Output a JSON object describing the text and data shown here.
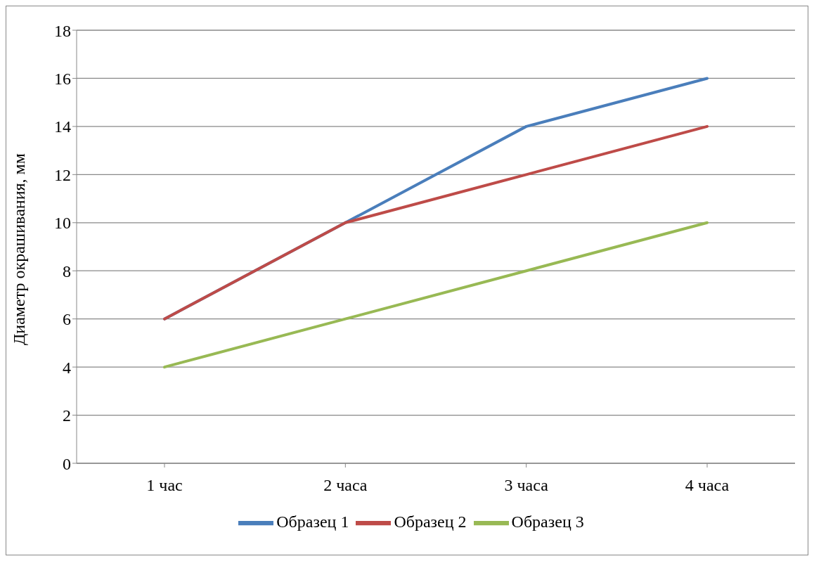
{
  "chart_data": {
    "type": "line",
    "ylabel": "Диаметр окрашивания, мм",
    "categories": [
      "1 час",
      "2 часа",
      "3 часа",
      "4 часа"
    ],
    "series": [
      {
        "name": "Образец 1",
        "color": "#4a7ebb",
        "values": [
          6,
          10,
          14,
          16
        ]
      },
      {
        "name": "Образец 2",
        "color": "#be4b48",
        "values": [
          6,
          10,
          12,
          14
        ]
      },
      {
        "name": "Образец 3",
        "color": "#98b954",
        "values": [
          4,
          6,
          8,
          10
        ]
      }
    ],
    "ylim": [
      0,
      18
    ],
    "yticks": [
      0,
      2,
      4,
      6,
      8,
      10,
      12,
      14,
      16,
      18
    ],
    "grid": "y",
    "legend": "bottom",
    "marker": "none",
    "line_style": "solid"
  }
}
